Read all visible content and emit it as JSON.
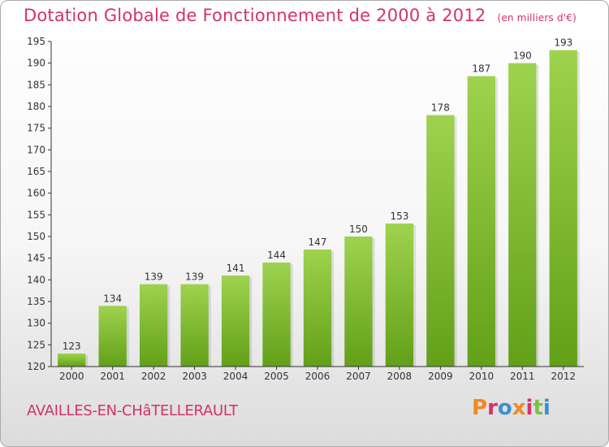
{
  "header": {
    "title": "Dotation Globale de Fonctionnement de 2000 à 2012",
    "unit": "(en milliers d'€)"
  },
  "footer": {
    "commune": "AVAILLES-EN-CHâTELLERAULT",
    "logo": "Proxiti"
  },
  "colors": {
    "title": "#d3326b",
    "bar_light": "#9fd24f",
    "bar_dark": "#62a019",
    "logo": [
      "#f08a24",
      "#d3326b",
      "#3a8fd0",
      "#f08a24",
      "#d3326b",
      "#7cc142",
      "#3a8fd0"
    ]
  },
  "chart_data": {
    "type": "bar",
    "categories": [
      "2000",
      "2001",
      "2002",
      "2003",
      "2004",
      "2005",
      "2006",
      "2007",
      "2008",
      "2009",
      "2010",
      "2011",
      "2012"
    ],
    "values": [
      123,
      134,
      139,
      139,
      141,
      144,
      147,
      150,
      153,
      178,
      187,
      190,
      193
    ],
    "title": "Dotation Globale de Fonctionnement de 2000 à 2012",
    "subtitle": "(en milliers d'€)",
    "ylim": [
      120,
      195
    ],
    "yticks": [
      120,
      125,
      130,
      135,
      140,
      145,
      150,
      155,
      160,
      165,
      170,
      175,
      180,
      185,
      190,
      195
    ],
    "grid": false,
    "data_labels": true
  }
}
